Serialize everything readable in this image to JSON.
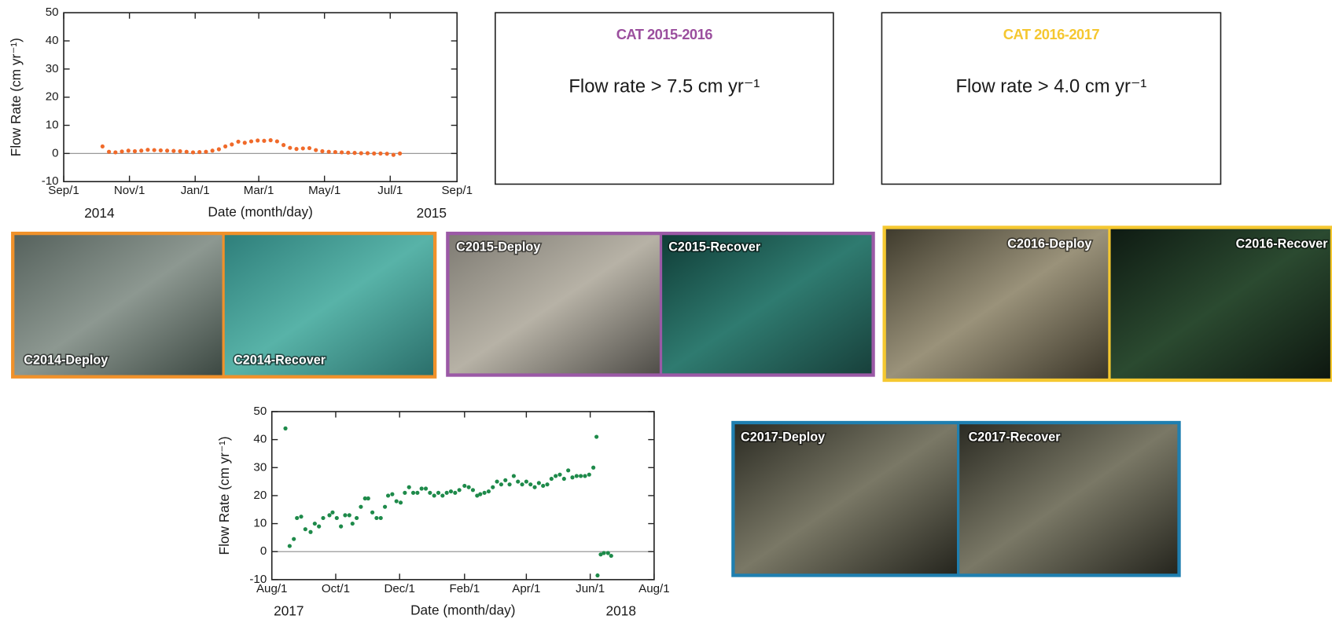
{
  "chart_data": [
    {
      "type": "scatter",
      "xlabel": "Date (month/day)",
      "ylabel": "Flow Rate (cm yr⁻¹)",
      "year_labels": [
        "2014",
        "2015"
      ],
      "xlim": [
        "2014-09-01",
        "2015-09-01"
      ],
      "xticks": [
        {
          "value": "2014-09-01",
          "label": "Sep/1"
        },
        {
          "value": "2014-11-01",
          "label": "Nov/1"
        },
        {
          "value": "2015-01-01",
          "label": "Jan/1"
        },
        {
          "value": "2015-03-01",
          "label": "Mar/1"
        },
        {
          "value": "2015-05-01",
          "label": "May/1"
        },
        {
          "value": "2015-07-01",
          "label": "Jul/1"
        },
        {
          "value": "2015-09-01",
          "label": "Sep/1"
        }
      ],
      "ylim": [
        -10,
        50
      ],
      "yticks": [
        -10,
        0,
        10,
        20,
        30,
        40,
        50
      ],
      "hline": 0,
      "color": "#f06a2a",
      "x": [
        "2014-10-07",
        "2014-10-13",
        "2014-10-19",
        "2014-10-25",
        "2014-10-31",
        "2014-11-06",
        "2014-11-12",
        "2014-11-18",
        "2014-11-24",
        "2014-11-30",
        "2014-12-06",
        "2014-12-12",
        "2014-12-18",
        "2014-12-24",
        "2014-12-30",
        "2015-01-05",
        "2015-01-11",
        "2015-01-17",
        "2015-01-23",
        "2015-01-29",
        "2015-02-04",
        "2015-02-10",
        "2015-02-16",
        "2015-02-22",
        "2015-02-28",
        "2015-03-06",
        "2015-03-12",
        "2015-03-18",
        "2015-03-24",
        "2015-03-30",
        "2015-04-05",
        "2015-04-11",
        "2015-04-17",
        "2015-04-23",
        "2015-04-29",
        "2015-05-05",
        "2015-05-11",
        "2015-05-17",
        "2015-05-23",
        "2015-05-29",
        "2015-06-04",
        "2015-06-10",
        "2015-06-16",
        "2015-06-22",
        "2015-06-28",
        "2015-07-04",
        "2015-07-10"
      ],
      "values": [
        2.5,
        0.6,
        0.4,
        0.7,
        1.0,
        0.8,
        1.0,
        1.3,
        1.2,
        1.1,
        1.0,
        0.9,
        0.8,
        0.6,
        0.4,
        0.5,
        0.6,
        1.0,
        1.5,
        2.5,
        3.2,
        4.2,
        3.8,
        4.3,
        4.6,
        4.5,
        4.7,
        4.3,
        3.0,
        2.0,
        1.6,
        1.8,
        1.9,
        1.2,
        0.8,
        0.6,
        0.5,
        0.4,
        0.3,
        0.2,
        0.1,
        0.1,
        0.0,
        0.0,
        -0.1,
        -0.5,
        0.0
      ]
    },
    {
      "type": "scatter",
      "xlabel": "Date (month/day)",
      "ylabel": "Flow Rate (cm yr⁻¹)",
      "year_labels": [
        "2017",
        "2018"
      ],
      "xlim": [
        "2017-08-01",
        "2018-08-01"
      ],
      "xticks": [
        {
          "value": "2017-08-01",
          "label": "Aug/1"
        },
        {
          "value": "2017-10-01",
          "label": "Oct/1"
        },
        {
          "value": "2017-12-01",
          "label": "Dec/1"
        },
        {
          "value": "2018-02-01",
          "label": "Feb/1"
        },
        {
          "value": "2018-04-01",
          "label": "Apr/1"
        },
        {
          "value": "2018-06-01",
          "label": "Jun/1"
        },
        {
          "value": "2018-08-01",
          "label": "Aug/1"
        }
      ],
      "ylim": [
        -10,
        50
      ],
      "yticks": [
        -10,
        0,
        10,
        20,
        30,
        40,
        50
      ],
      "hline": 0,
      "color": "#1e8a4a",
      "x": [
        "2017-08-14",
        "2017-08-18",
        "2017-08-22",
        "2017-08-25",
        "2017-08-29",
        "2017-09-02",
        "2017-09-07",
        "2017-09-11",
        "2017-09-15",
        "2017-09-19",
        "2017-09-25",
        "2017-09-28",
        "2017-10-02",
        "2017-10-06",
        "2017-10-10",
        "2017-10-14",
        "2017-10-17",
        "2017-10-21",
        "2017-10-25",
        "2017-10-29",
        "2017-11-01",
        "2017-11-05",
        "2017-11-09",
        "2017-11-13",
        "2017-11-17",
        "2017-11-20",
        "2017-11-24",
        "2017-11-28",
        "2017-12-02",
        "2017-12-06",
        "2017-12-10",
        "2017-12-14",
        "2017-12-18",
        "2017-12-22",
        "2017-12-26",
        "2017-12-30",
        "2018-01-03",
        "2018-01-07",
        "2018-01-11",
        "2018-01-15",
        "2018-01-19",
        "2018-01-23",
        "2018-01-27",
        "2018-02-01",
        "2018-02-05",
        "2018-02-09",
        "2018-02-13",
        "2018-02-16",
        "2018-02-20",
        "2018-02-24",
        "2018-02-28",
        "2018-03-04",
        "2018-03-08",
        "2018-03-12",
        "2018-03-16",
        "2018-03-20",
        "2018-03-24",
        "2018-03-28",
        "2018-04-01",
        "2018-04-05",
        "2018-04-09",
        "2018-04-13",
        "2018-04-17",
        "2018-04-21",
        "2018-04-25",
        "2018-04-29",
        "2018-05-03",
        "2018-05-07",
        "2018-05-11",
        "2018-05-15",
        "2018-05-19",
        "2018-05-23",
        "2018-05-27",
        "2018-05-31",
        "2018-06-04",
        "2018-06-07",
        "2018-06-08",
        "2018-06-11",
        "2018-06-14",
        "2018-06-18",
        "2018-06-21"
      ],
      "values": [
        44,
        2,
        4.5,
        12,
        12.5,
        8,
        7,
        10,
        9,
        12,
        13,
        14,
        12,
        9,
        13,
        13,
        10,
        12,
        16,
        19,
        19,
        14,
        12,
        12,
        16,
        20,
        20.5,
        18,
        17.5,
        21,
        23,
        21,
        21,
        22.5,
        22.5,
        21,
        20,
        21,
        20,
        21,
        21.5,
        21,
        22,
        23.5,
        23,
        22,
        20,
        20.5,
        21,
        21.5,
        23,
        25,
        24,
        25.5,
        24,
        27,
        25,
        24,
        25,
        24,
        23,
        24.5,
        23.5,
        24,
        26,
        27,
        27.5,
        26,
        29,
        26.5,
        27,
        27,
        27,
        27.5,
        30,
        41,
        -8.5,
        -1,
        -0.5,
        -0.5,
        -1.5
      ]
    }
  ],
  "cat_boxes": [
    {
      "title": "CAT 2015-2016",
      "title_color": "#9b4f9e",
      "text": "Flow rate > 7.5 cm yr⁻¹"
    },
    {
      "title": "CAT 2016-2017",
      "title_color": "#f5c730",
      "text": "Flow rate > 4.0 cm yr⁻¹"
    }
  ],
  "photo_panels": [
    {
      "color": "#f0912a",
      "photos": [
        "C2014-Deploy",
        "C2014-Recover"
      ]
    },
    {
      "color": "#9b59a6",
      "photos": [
        "C2015-Deploy",
        "C2015-Recover"
      ]
    },
    {
      "color": "#f5c830",
      "photos": [
        "C2016-Deploy",
        "C2016-Recover"
      ]
    },
    {
      "color": "#1f7fb0",
      "photos": [
        "C2017-Deploy",
        "C2017-Recover"
      ]
    }
  ]
}
